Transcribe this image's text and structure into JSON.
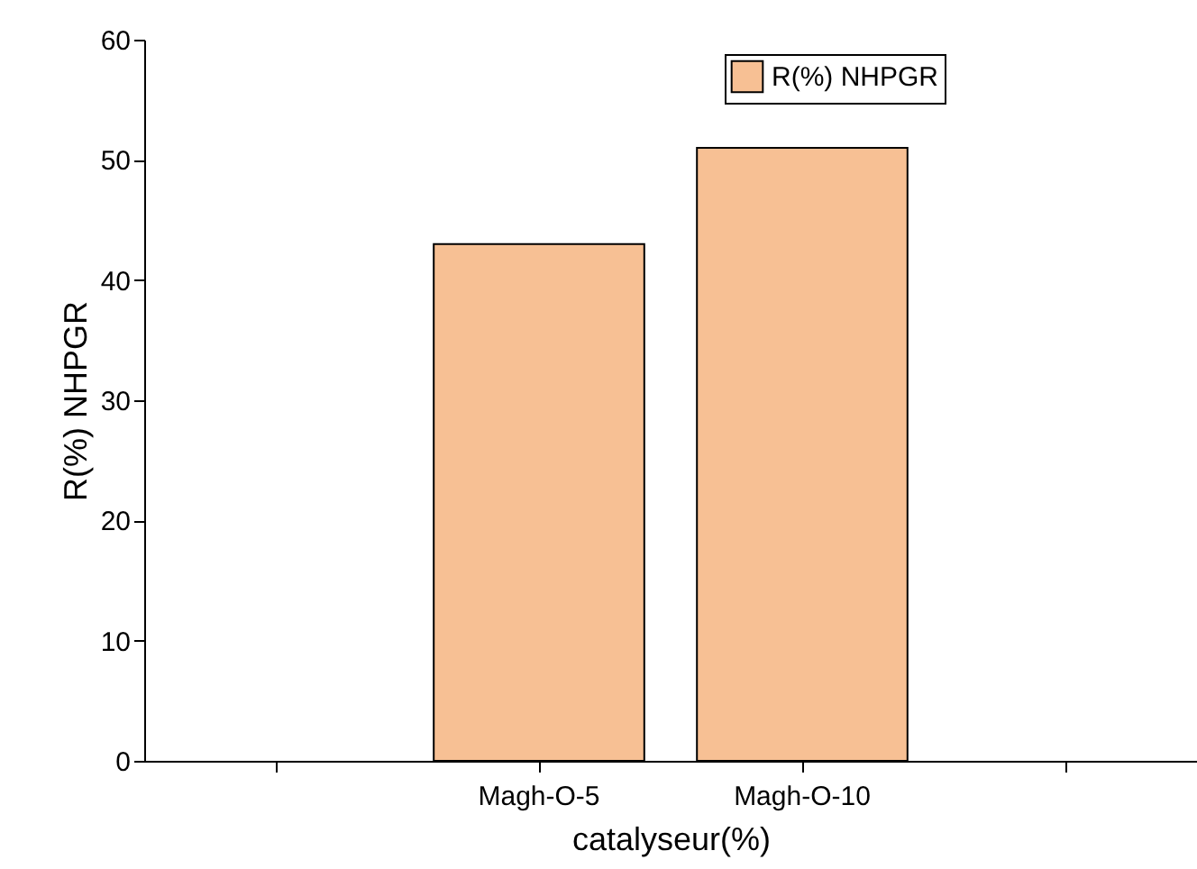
{
  "chart_data": {
    "type": "bar",
    "xlabel": "catalyseur(%)",
    "ylabel": "R(%) NHPGR",
    "categories": [
      null,
      "Magh-O-5",
      "Magh-O-10",
      null
    ],
    "series": [
      {
        "name": "R(%) NHPGR",
        "color": "#f7c094",
        "values": [
          null,
          43,
          51,
          null
        ]
      }
    ],
    "ylim": [
      0,
      60
    ],
    "yticks": [
      0,
      10,
      20,
      30,
      40,
      50,
      60
    ],
    "grid": false,
    "legend": "top right"
  }
}
